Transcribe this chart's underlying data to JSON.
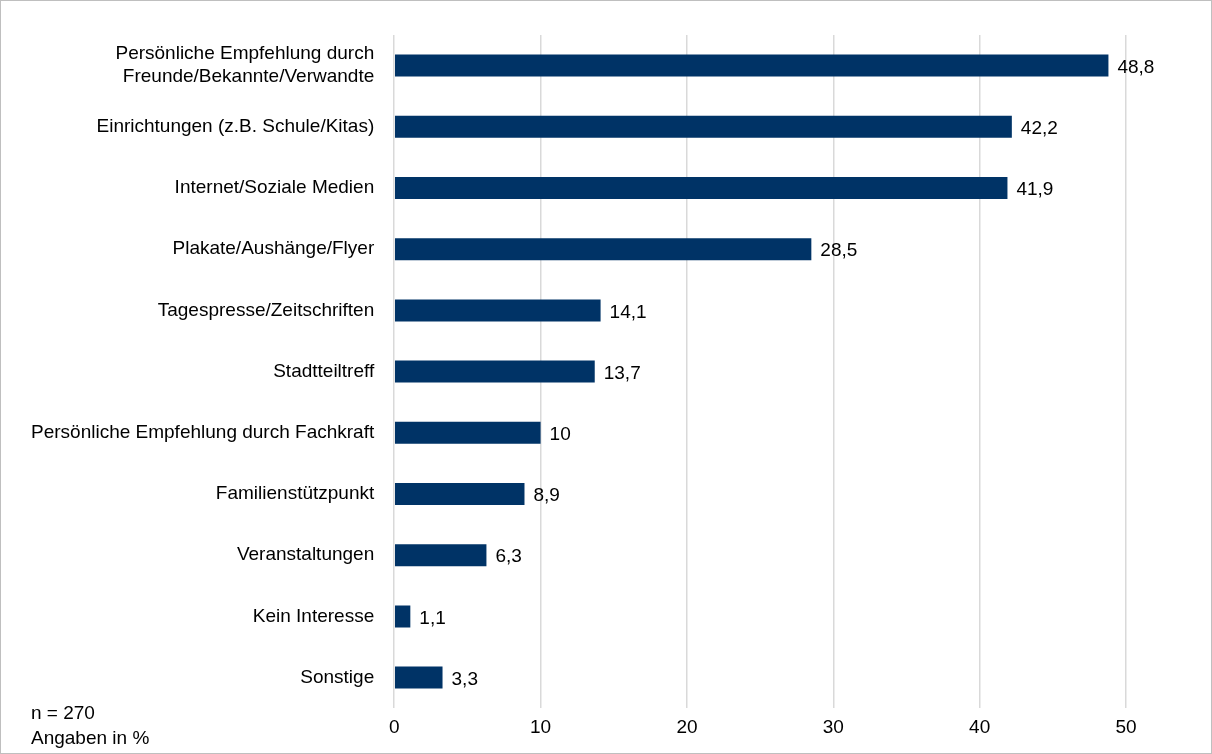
{
  "chart_data": {
    "type": "bar",
    "orientation": "horizontal",
    "categories": [
      "Persönliche Empfehlung durch Freunde/Bekannte/Verwandte",
      "Einrichtungen (z.B. Schule/Kitas)",
      "Internet/Soziale Medien",
      "Plakate/Aushänge/Flyer",
      "Tagespresse/Zeitschriften",
      "Stadtteiltreff",
      "Persönliche Empfehlung durch Fachkraft",
      "Familienstützpunkt",
      "Veranstaltungen",
      "Kein Interesse",
      "Sonstige"
    ],
    "values": [
      48.8,
      42.2,
      41.9,
      28.5,
      14.1,
      13.7,
      10,
      8.9,
      6.3,
      1.1,
      3.3
    ],
    "color": "#003366",
    "value_labels": [
      "48,8",
      "42,2",
      "41,9",
      "28,5",
      "14,1",
      "13,7",
      "10",
      "8,9",
      "6,3",
      "1,1",
      "3,3"
    ],
    "xlim": [
      0,
      50
    ],
    "xticks": [
      0,
      10,
      20,
      30,
      40,
      50
    ],
    "grid": "x",
    "annotations": [
      "n = 270",
      "Angaben in %"
    ]
  }
}
